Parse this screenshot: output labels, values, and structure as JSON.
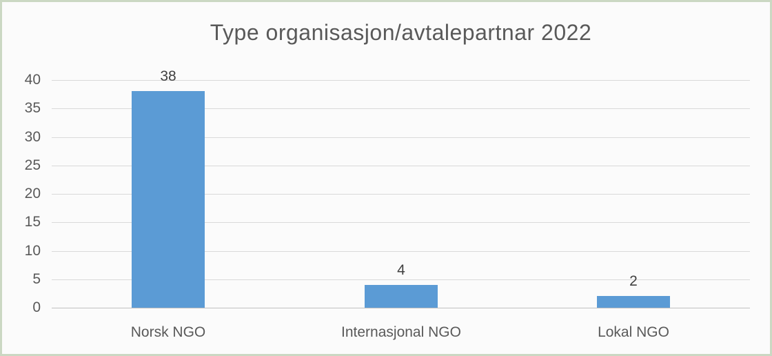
{
  "frame": {
    "border_color": "#cbd8c3",
    "background_color": "#fbfbfb"
  },
  "chart_data": {
    "type": "bar",
    "title": "Type organisasjon/avtalepartnar 2022",
    "categories": [
      "Norsk NGO",
      "Internasjonal NGO",
      "Lokal NGO"
    ],
    "values": [
      38,
      4,
      2
    ],
    "data_labels": [
      "38",
      "4",
      "2"
    ],
    "ylim": [
      0,
      40
    ],
    "ytick_step": 5,
    "yticks": [
      0,
      5,
      10,
      15,
      20,
      25,
      30,
      35,
      40
    ],
    "ytick_labels": [
      "0",
      "5",
      "10",
      "15",
      "20",
      "25",
      "30",
      "35",
      "40"
    ],
    "grid": true,
    "legend_position": "none",
    "bar_color": "#5B9BD5",
    "gridline_color": "#d9d9d9",
    "axis_line_color": "#bfbfbf",
    "title_color": "#595959",
    "tick_label_color": "#595959",
    "category_label_color": "#595959",
    "data_label_color": "#404040"
  }
}
